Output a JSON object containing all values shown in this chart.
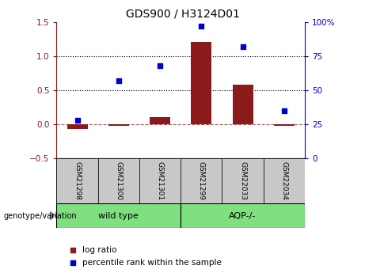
{
  "title": "GDS900 / H3124D01",
  "samples": [
    "GSM21298",
    "GSM21300",
    "GSM21301",
    "GSM21299",
    "GSM22033",
    "GSM22034"
  ],
  "log_ratio": [
    -0.07,
    -0.02,
    0.1,
    1.2,
    0.58,
    -0.02
  ],
  "percentile": [
    28,
    57,
    68,
    97,
    82,
    35
  ],
  "ylim_left": [
    -0.5,
    1.5
  ],
  "ylim_right": [
    0,
    100
  ],
  "yticks_left": [
    -0.5,
    0.0,
    0.5,
    1.0,
    1.5
  ],
  "yticks_right": [
    0,
    25,
    50,
    75,
    100
  ],
  "ytick_labels_right": [
    "0",
    "25",
    "50",
    "75",
    "100%"
  ],
  "hlines_dotted": [
    0.5,
    1.0
  ],
  "hline_dashdot": 0.0,
  "bar_color": "#8B1A1A",
  "scatter_color": "#0000CC",
  "bar_width": 0.5,
  "genotype_labels": [
    "wild type",
    "AQP-/-"
  ],
  "genotype_ranges": [
    [
      0,
      3
    ],
    [
      3,
      6
    ]
  ],
  "genotype_color": "#7FE07F",
  "tick_label_bg": "#C8C8C8",
  "legend_red_label": "log ratio",
  "legend_blue_label": "percentile rank within the sample",
  "xlabel_annotation": "genotype/variation"
}
